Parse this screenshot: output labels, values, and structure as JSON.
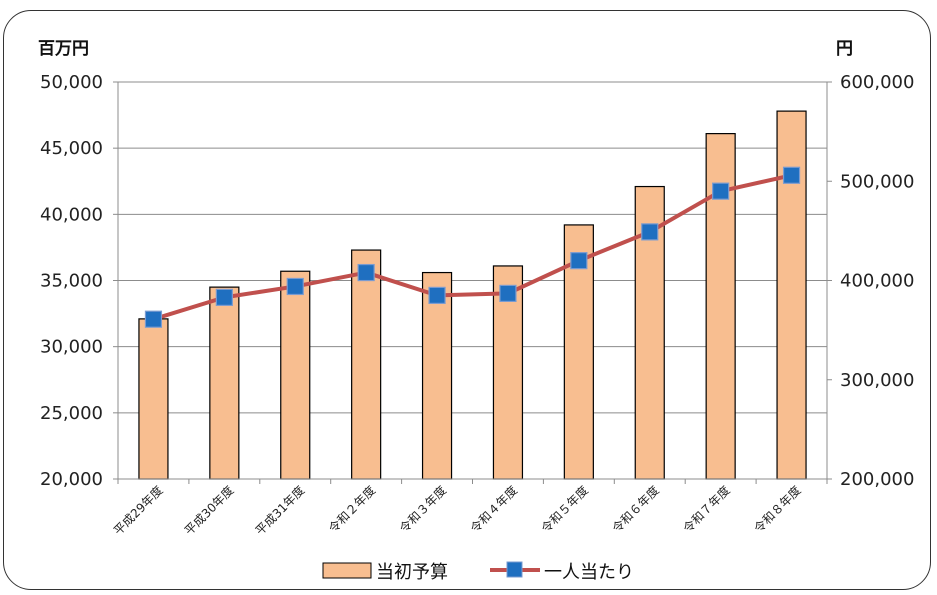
{
  "chart_data": {
    "type": "bar",
    "categories": [
      "平成29年度",
      "平成30年度",
      "平成31年度",
      "令和２年度",
      "令和３年度",
      "令和４年度",
      "令和５年度",
      "令和６年度",
      "令和７年度",
      "令和８年度"
    ],
    "y_left": {
      "unit": "百万円",
      "ylim": [
        20000,
        50000
      ],
      "ticks": [
        "20,000",
        "25,000",
        "30,000",
        "35,000",
        "40,000",
        "45,000",
        "50,000"
      ]
    },
    "y_right": {
      "unit": "円",
      "ylim": [
        200000,
        600000
      ],
      "ticks": [
        "200,000",
        "300,000",
        "400,000",
        "500,000",
        "600,000"
      ]
    },
    "series": [
      {
        "name": "当初予算",
        "type": "bar",
        "axis": "left",
        "values": [
          32100,
          34500,
          35700,
          37300,
          35600,
          36100,
          39200,
          42100,
          46100,
          47800
        ],
        "color": "#f8be90",
        "stroke": "#000000"
      },
      {
        "name": "一人当たり",
        "type": "line",
        "axis": "right",
        "values": [
          361000,
          383000,
          394000,
          408000,
          385000,
          387000,
          420000,
          449000,
          490000,
          506000
        ],
        "color": "#c0504d",
        "marker_color": "#1f6fc0"
      }
    ],
    "grid": true,
    "legend": "bottom"
  }
}
